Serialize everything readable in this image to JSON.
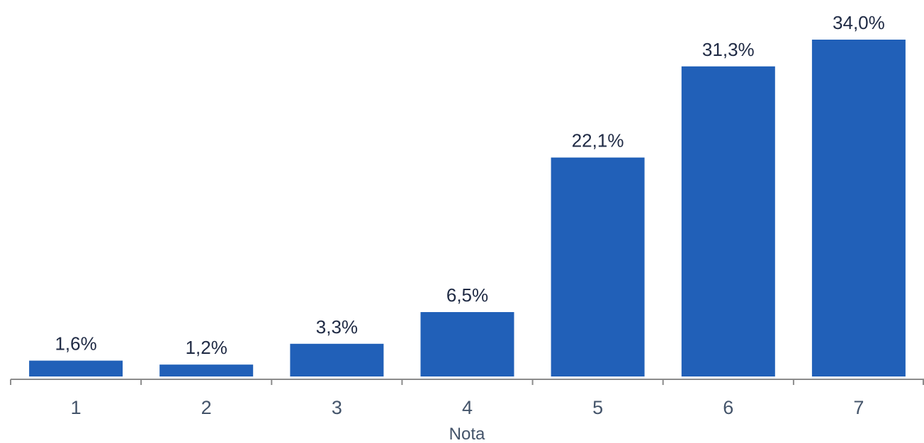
{
  "chart_data": {
    "type": "bar",
    "categories": [
      "1",
      "2",
      "3",
      "4",
      "5",
      "6",
      "7"
    ],
    "values": [
      1.6,
      1.2,
      3.3,
      6.5,
      22.1,
      31.3,
      34.0
    ],
    "data_labels": [
      "1,6%",
      "1,2%",
      "3,3%",
      "6,5%",
      "22,1%",
      "31,3%",
      "34,0%"
    ],
    "title": "",
    "xlabel": "Nota",
    "ylabel": "",
    "ylim": [
      0,
      34.0
    ],
    "grid": false,
    "legend": "none",
    "bar_color": "#2160b8",
    "axis_color": "#8c8c8c"
  }
}
